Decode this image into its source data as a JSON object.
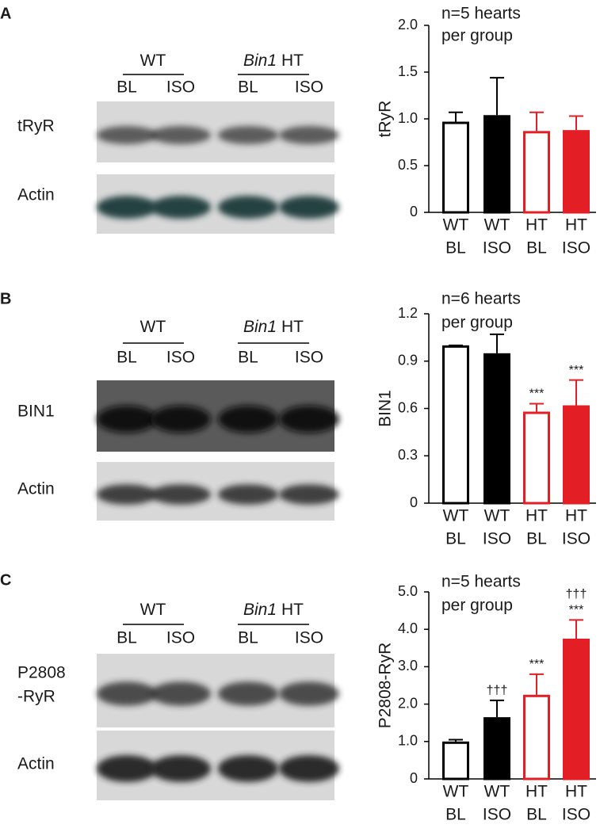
{
  "panels": [
    {
      "letter": "A",
      "groups": [
        [
          "WT"
        ],
        [
          "Bin1",
          "HT"
        ]
      ],
      "lanes": [
        "BL",
        "ISO",
        "BL",
        "ISO"
      ],
      "rows": [
        [
          "tRyR"
        ],
        [
          "Actin"
        ]
      ]
    },
    {
      "letter": "B",
      "groups": [
        [
          "WT"
        ],
        [
          "Bin1",
          "HT"
        ]
      ],
      "lanes": [
        "BL",
        "ISO",
        "BL",
        "ISO"
      ],
      "rows": [
        [
          "BIN1"
        ],
        [
          "Actin"
        ]
      ]
    },
    {
      "letter": "C",
      "groups": [
        [
          "WT"
        ],
        [
          "Bin1",
          "HT"
        ]
      ],
      "lanes": [
        "BL",
        "ISO",
        "BL",
        "ISO"
      ],
      "rows": [
        [
          "P2808",
          "-RyR"
        ],
        [
          "Actin"
        ]
      ]
    }
  ],
  "chart_data": [
    {
      "type": "bar",
      "ylabel": "tRyR",
      "annotation": [
        "n=5 hearts",
        "per group"
      ],
      "categories": [
        [
          "WT",
          "BL"
        ],
        [
          "WT",
          "ISO"
        ],
        [
          "HT",
          "BL"
        ],
        [
          "HT",
          "ISO"
        ]
      ],
      "values": [
        0.97,
        1.04,
        0.87,
        0.88
      ],
      "errors": [
        0.1,
        0.4,
        0.2,
        0.15
      ],
      "fill_colors": [
        "#ffffff",
        "#000000",
        "#ffffff",
        "#e31e24"
      ],
      "edge_colors": [
        "#000000",
        "#000000",
        "#e31e24",
        "#e31e24"
      ],
      "bar_annotations": [
        null,
        null,
        null,
        null
      ],
      "ylim": [
        0,
        2.0
      ],
      "yticks": [
        0,
        0.5,
        {
          "value": 1.0,
          "label": "1.0"
        },
        1.5,
        {
          "value": 2.0,
          "label": "2.0"
        }
      ]
    },
    {
      "type": "bar",
      "ylabel": "BIN1",
      "annotation": [
        "n=6 hearts",
        "per group"
      ],
      "categories": [
        [
          "WT",
          "BL"
        ],
        [
          "WT",
          "ISO"
        ],
        [
          "HT",
          "BL"
        ],
        [
          "HT",
          "ISO"
        ]
      ],
      "values": [
        1.0,
        0.95,
        0.58,
        0.62
      ],
      "errors": [
        0,
        0.12,
        0.05,
        0.16
      ],
      "fill_colors": [
        "#ffffff",
        "#000000",
        "#ffffff",
        "#e31e24"
      ],
      "edge_colors": [
        "#000000",
        "#000000",
        "#e31e24",
        "#e31e24"
      ],
      "bar_annotations": [
        null,
        null,
        [
          "***"
        ],
        [
          "***"
        ]
      ],
      "ylim": [
        0,
        1.2
      ],
      "yticks": [
        0,
        0.3,
        0.6,
        0.9,
        1.2
      ]
    },
    {
      "type": "bar",
      "ylabel": "P2808-RyR",
      "annotation": [
        "n=5 hearts",
        "per group"
      ],
      "categories": [
        [
          "WT",
          "BL"
        ],
        [
          "WT",
          "ISO"
        ],
        [
          "HT",
          "BL"
        ],
        [
          "HT",
          "ISO"
        ]
      ],
      "values": [
        1.0,
        1.65,
        2.25,
        3.75
      ],
      "errors": [
        0.05,
        0.45,
        0.55,
        0.5
      ],
      "fill_colors": [
        "#ffffff",
        "#000000",
        "#ffffff",
        "#e31e24"
      ],
      "edge_colors": [
        "#000000",
        "#000000",
        "#e31e24",
        "#e31e24"
      ],
      "bar_annotations": [
        null,
        [
          "†††"
        ],
        [
          "***"
        ],
        [
          "†††",
          "***"
        ]
      ],
      "ylim": [
        0,
        5.0
      ],
      "yticks": [
        0,
        {
          "value": 1.0,
          "label": "1.0"
        },
        {
          "value": 2.0,
          "label": "2.0"
        },
        {
          "value": 3.0,
          "label": "3.0"
        },
        {
          "value": 4.0,
          "label": "4.0"
        },
        {
          "value": 5.0,
          "label": "5.0"
        }
      ]
    }
  ]
}
